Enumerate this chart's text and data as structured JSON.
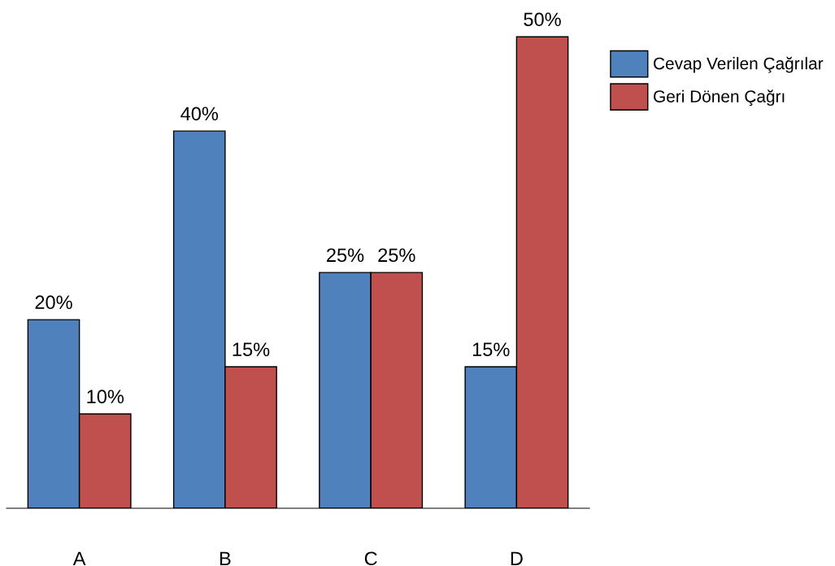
{
  "chart_data": {
    "type": "bar",
    "categories": [
      "A",
      "B",
      "C",
      "D"
    ],
    "series": [
      {
        "name": "Cevap Verilen Çağrılar",
        "color": "#4f81bd",
        "values": [
          20,
          40,
          25,
          15
        ],
        "value_labels": [
          "20%",
          "40%",
          "25%",
          "15%"
        ]
      },
      {
        "name": "Geri Dönen Çağrı",
        "color": "#c0504d",
        "values": [
          10,
          15,
          25,
          50
        ],
        "value_labels": [
          "10%",
          "15%",
          "25%",
          "50%"
        ]
      }
    ],
    "legend": "top right",
    "grid": false
  }
}
